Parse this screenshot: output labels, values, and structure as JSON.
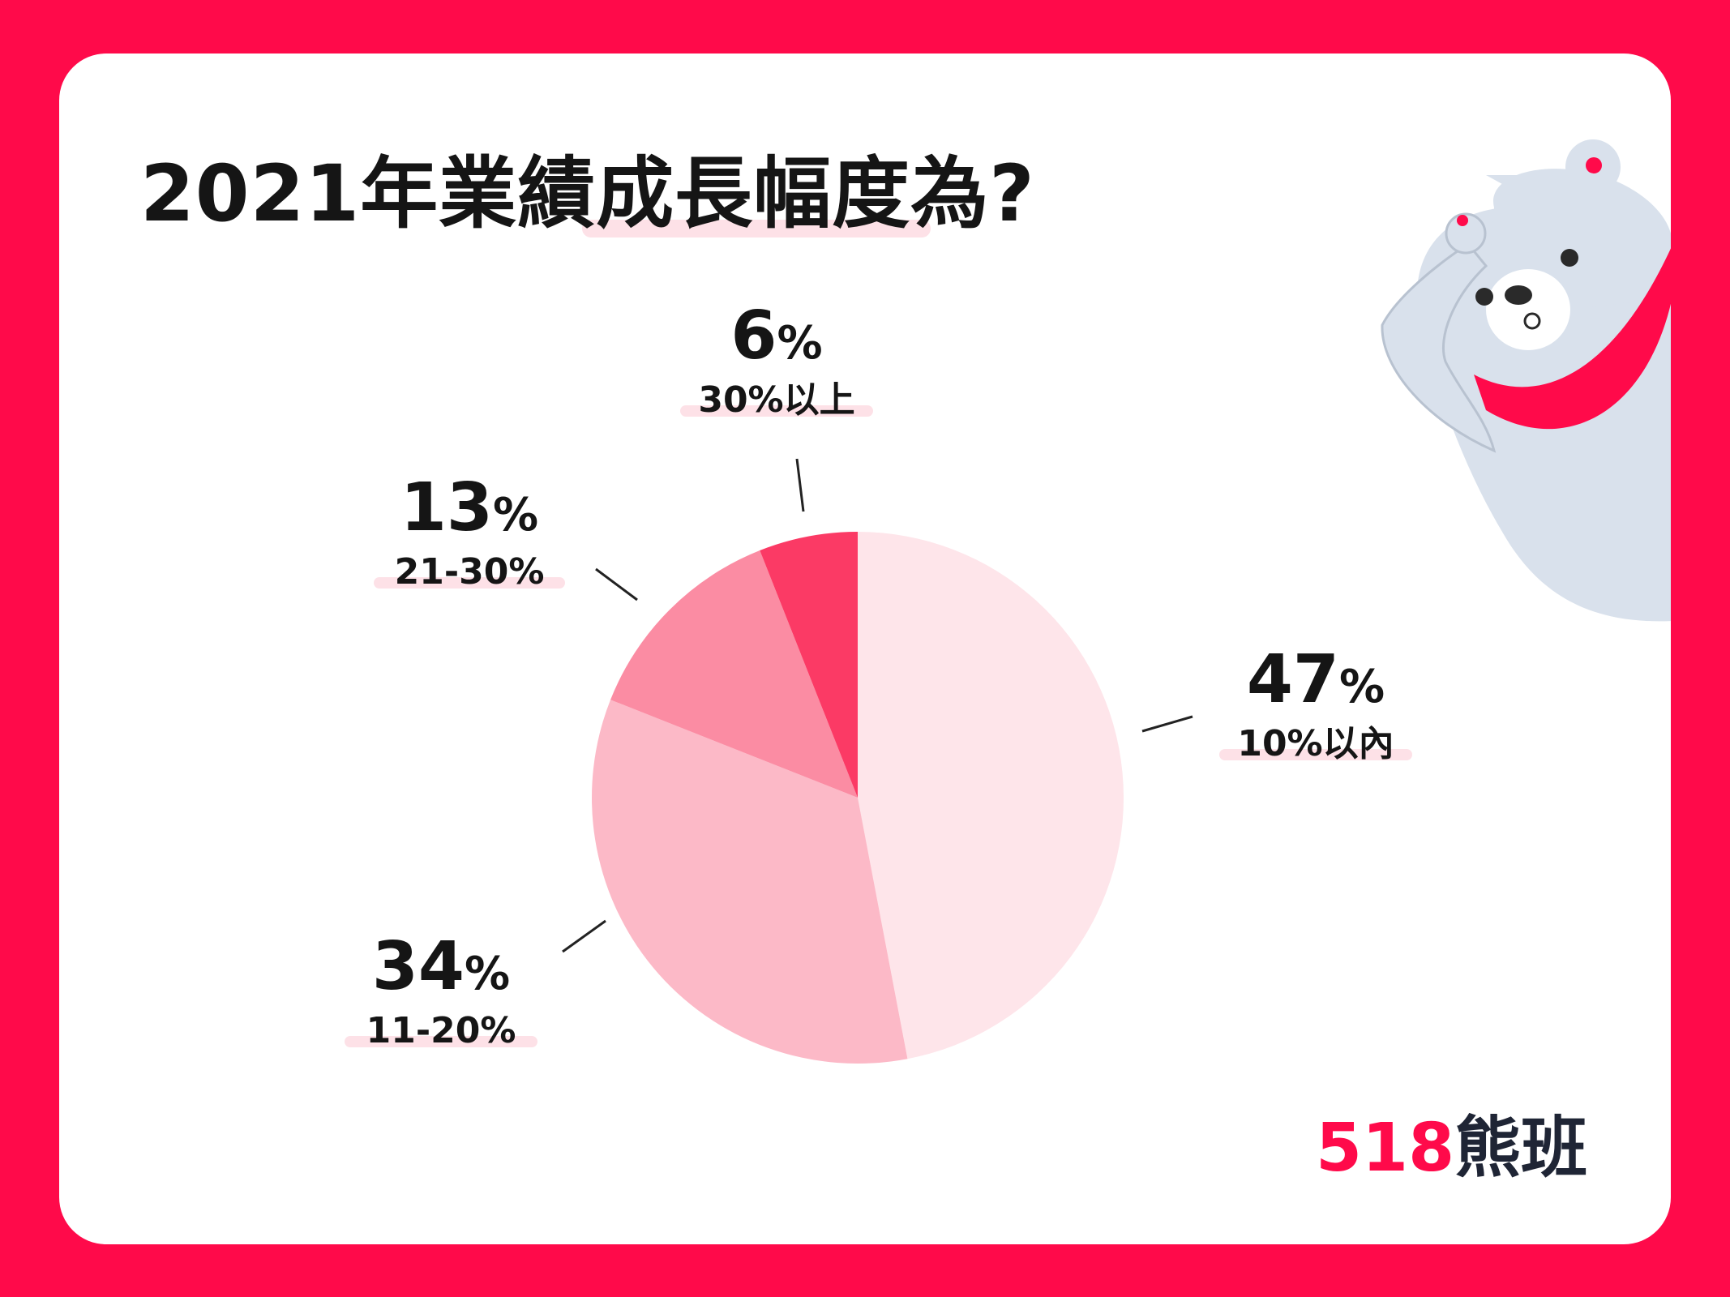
{
  "title": "2021年業績成長幅度為?",
  "brand": {
    "logo_number": "518",
    "logo_text": "熊班"
  },
  "colors": {
    "frame": "#ff0a4a",
    "card": "#ffffff",
    "text": "#151515",
    "label_highlight": "#fde1e7",
    "bear_body": "#d9e1ec",
    "scarf": "#ff0a4a"
  },
  "chart_data": {
    "type": "pie",
    "title": "2021年業績成長幅度為?",
    "start_angle_deg": 0,
    "direction": "clockwise",
    "slices": [
      {
        "label": "10%以內",
        "value": 47,
        "percent_text": "47",
        "color": "#fee5ea"
      },
      {
        "label": "11-20%",
        "value": 34,
        "percent_text": "34",
        "color": "#fcb9c7"
      },
      {
        "label": "21-30%",
        "value": 13,
        "percent_text": "13",
        "color": "#fb8ca3"
      },
      {
        "label": "30%以上",
        "value": 6,
        "percent_text": "6",
        "color": "#fb3a65"
      }
    ],
    "percent_sign": "%",
    "legend": "none",
    "labels_placement": "outside with leader lines"
  }
}
